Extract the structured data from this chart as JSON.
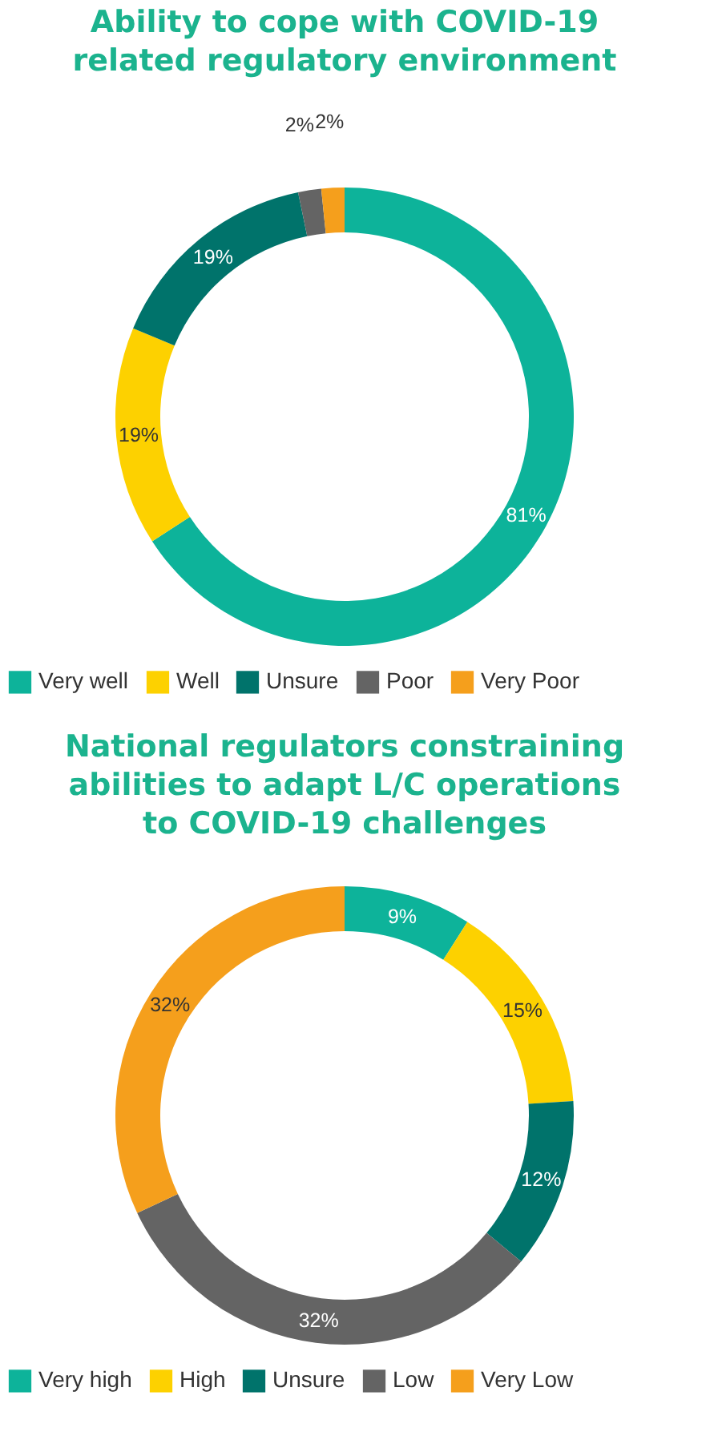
{
  "chart_data": [
    {
      "type": "donut",
      "title": "Ability to cope with COVID-19 related regulatory environment",
      "categories": [
        "Very well",
        "Well",
        "Unsure",
        "Poor",
        "Very Poor"
      ],
      "values": [
        81,
        19,
        19,
        2,
        2
      ],
      "value_labels": [
        "81%",
        "19%",
        "19%",
        "2%",
        "2%"
      ],
      "colors": [
        "#0db39a",
        "#fdd100",
        "#00736b",
        "#646464",
        "#f59f1c"
      ],
      "legend": "bottom"
    },
    {
      "type": "donut",
      "title": "National regulators constraining abilities to adapt L/C operations to COVID-19 challenges",
      "categories": [
        "Very high",
        "High",
        "Unsure",
        "Low",
        "Very Low"
      ],
      "values": [
        9,
        15,
        12,
        32,
        32
      ],
      "value_labels": [
        "9%",
        "15%",
        "12%",
        "32%",
        "32%"
      ],
      "colors": [
        "#0db39a",
        "#fdd100",
        "#00736b",
        "#646464",
        "#f59f1c"
      ],
      "legend": "bottom"
    }
  ]
}
